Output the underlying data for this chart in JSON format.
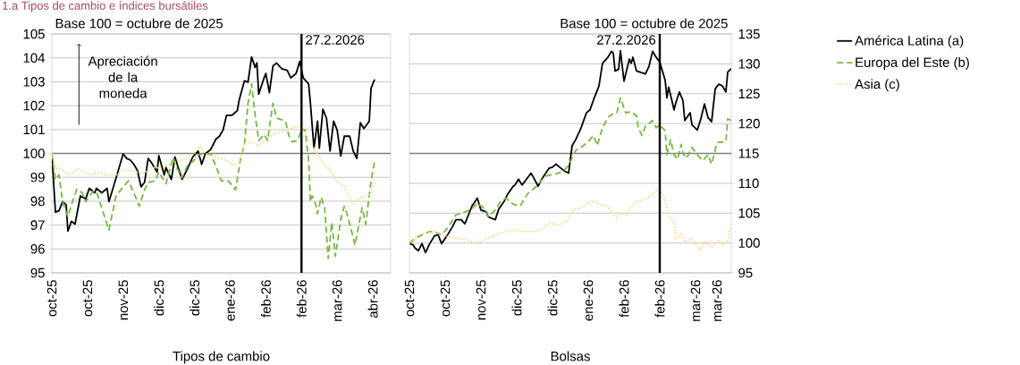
{
  "chart_data": [
    {
      "type": "line",
      "title": "1.a  Tipos de cambio e índices bursátiles",
      "subtitle": "Base 100 = octubre de 2025",
      "xlabel": "Tipos de cambio",
      "annotations": [
        "Apreciación de la moneda"
      ],
      "xlim": [
        "2025-10-10",
        "2026-04-18"
      ],
      "ylim": [
        95,
        105
      ],
      "yticks": [
        95,
        96,
        97,
        98,
        99,
        100,
        101,
        102,
        103,
        104,
        105
      ],
      "xticks": [
        {
          "value": "2025-10-10",
          "label": "oct-25"
        },
        {
          "value": "2025-10-30",
          "label": "oct-25"
        },
        {
          "value": "2025-11-19",
          "label": "nov-25"
        },
        {
          "value": "2025-12-09",
          "label": "dic-25"
        },
        {
          "value": "2025-12-29",
          "label": "dic-25"
        },
        {
          "value": "2026-01-18",
          "label": "ene-26"
        },
        {
          "value": "2026-02-07",
          "label": "feb-26"
        },
        {
          "value": "2026-02-27",
          "label": "feb-26"
        },
        {
          "value": "2026-03-19",
          "label": "mar-26"
        },
        {
          "value": "2026-04-08",
          "label": "abr-26"
        }
      ],
      "grid": "y",
      "legend": false,
      "marker": "none",
      "ref_lines": [
        {
          "axis": "y",
          "value": 100,
          "color": "#808080"
        },
        {
          "axis": "x",
          "value": "2026-02-27",
          "label": "27.2.2026",
          "color": "#000000"
        }
      ],
      "series": [
        {
          "color": "#000000",
          "line_style": "solid",
          "x": [
            "2025-10-10",
            "2025-10-12",
            "2025-10-14",
            "2025-10-16",
            "2025-10-18",
            "2025-10-19",
            "2025-10-21",
            "2025-10-23",
            "2025-10-26",
            "2025-10-29",
            "2025-10-31",
            "2025-11-03",
            "2025-11-04",
            "2025-11-07",
            "2025-11-10",
            "2025-11-11",
            "2025-11-14",
            "2025-11-17",
            "2025-11-19",
            "2025-11-21",
            "2025-11-23",
            "2025-11-25",
            "2025-11-27",
            "2025-11-29",
            "2025-12-01",
            "2025-12-03",
            "2025-12-05",
            "2025-12-08",
            "2025-12-09",
            "2025-12-12",
            "2025-12-13",
            "2025-12-16",
            "2025-12-18",
            "2025-12-22",
            "2025-12-25",
            "2025-12-28",
            "2025-12-31",
            "2026-01-02",
            "2026-01-04",
            "2026-01-07",
            "2026-01-10",
            "2026-01-12",
            "2026-01-14",
            "2026-01-16",
            "2026-01-19",
            "2026-01-22",
            "2026-01-23",
            "2026-01-26",
            "2026-01-28",
            "2026-01-30",
            "2026-02-01",
            "2026-02-02",
            "2026-02-03",
            "2026-02-06",
            "2026-02-07",
            "2026-02-09",
            "2026-02-11",
            "2026-02-13",
            "2026-02-16",
            "2026-02-19",
            "2026-02-21",
            "2026-02-24",
            "2026-02-26",
            "2026-02-28",
            "2026-03-03",
            "2026-03-04",
            "2026-03-06",
            "2026-03-08",
            "2026-03-09",
            "2026-03-11",
            "2026-03-13",
            "2026-03-15",
            "2026-03-17",
            "2026-03-19",
            "2026-03-21",
            "2026-03-23",
            "2026-03-26",
            "2026-03-28",
            "2026-03-30",
            "2026-04-01",
            "2026-04-03",
            "2026-04-06",
            "2026-04-07",
            "2026-04-09"
          ],
          "values": [
            100,
            97.54,
            97.6,
            97.98,
            97.85,
            96.75,
            97.16,
            97.04,
            98.22,
            98.1,
            98.54,
            98.35,
            98.54,
            98.35,
            98.54,
            97.98,
            98.72,
            99.48,
            99.98,
            99.79,
            99.72,
            99.54,
            99.29,
            98.6,
            98.79,
            99.79,
            99.6,
            99.22,
            99.91,
            99.1,
            99.41,
            98.91,
            99.85,
            98.91,
            99.35,
            99.85,
            100.1,
            99.54,
            99.98,
            100.16,
            100.6,
            100.72,
            100.98,
            101.6,
            101.6,
            101.79,
            102.22,
            103.04,
            102.98,
            104.04,
            103.6,
            103.79,
            102.48,
            103.16,
            103.35,
            102.54,
            103.66,
            103.79,
            103.54,
            103.48,
            103.16,
            103.35,
            103.85,
            103.16,
            102.91,
            102.1,
            100.22,
            101.35,
            100.22,
            101.85,
            101.48,
            100.1,
            101.35,
            100.98,
            99.88,
            100.72,
            100.72,
            100.1,
            99.79,
            101.29,
            101.04,
            101.35,
            102.73,
            103.1
          ]
        },
        {
          "color": "#77b843",
          "line_style": "dashed",
          "x": [
            "2025-10-10",
            "2025-10-12",
            "2025-10-14",
            "2025-10-16",
            "2025-10-19",
            "2025-10-21",
            "2025-10-24",
            "2025-10-27",
            "2025-10-29",
            "2025-11-02",
            "2025-11-04",
            "2025-11-08",
            "2025-11-11",
            "2025-11-15",
            "2025-11-19",
            "2025-11-22",
            "2025-11-25",
            "2025-11-28",
            "2025-12-01",
            "2025-12-03",
            "2025-12-07",
            "2025-12-09",
            "2025-12-13",
            "2025-12-17",
            "2025-12-19",
            "2025-12-22",
            "2025-12-25",
            "2025-12-28",
            "2026-01-01",
            "2026-01-03",
            "2026-01-07",
            "2026-01-10",
            "2026-01-13",
            "2026-01-17",
            "2026-01-21",
            "2026-01-24",
            "2026-01-26",
            "2026-01-28",
            "2026-01-30",
            "2026-02-01",
            "2026-02-03",
            "2026-02-06",
            "2026-02-08",
            "2026-02-09",
            "2026-02-11",
            "2026-02-13",
            "2026-02-16",
            "2026-02-18",
            "2026-02-20",
            "2026-02-22",
            "2026-02-25",
            "2026-02-27",
            "2026-03-01",
            "2026-03-03",
            "2026-03-04",
            "2026-03-05",
            "2026-03-07",
            "2026-03-08",
            "2026-03-10",
            "2026-03-12",
            "2026-03-14",
            "2026-03-16",
            "2026-03-18",
            "2026-03-21",
            "2026-03-23",
            "2026-03-25",
            "2026-03-29",
            "2026-04-02",
            "2026-04-04",
            "2026-04-07",
            "2026-04-09"
          ],
          "values": [
            100,
            98.91,
            99.1,
            97.98,
            97.35,
            97.85,
            98.5,
            98.35,
            97.98,
            98.41,
            98.41,
            97.48,
            96.79,
            98.22,
            98.6,
            98.85,
            98.35,
            97.79,
            98.48,
            98.79,
            98.85,
            99.22,
            98.73,
            99.85,
            99.41,
            98.98,
            99.48,
            99.66,
            99.98,
            99.98,
            99.98,
            99.48,
            98.85,
            98.85,
            98.48,
            99.85,
            100.35,
            102.1,
            102.91,
            101.6,
            100.54,
            100.79,
            100.54,
            101.1,
            102.1,
            101.48,
            101.41,
            101.35,
            100.72,
            100.48,
            100.54,
            101.04,
            100.98,
            99.73,
            97.98,
            98.22,
            97.85,
            97.48,
            98.16,
            97.73,
            95.6,
            97.1,
            95.7,
            97.23,
            97.79,
            97.35,
            96.16,
            97.73,
            97.04,
            98.85,
            99.66
          ]
        },
        {
          "color": "#ffd480",
          "line_style": "dotted",
          "x": [
            "2025-10-10",
            "2025-10-12",
            "2025-10-16",
            "2025-10-20",
            "2025-10-25",
            "2025-10-28",
            "2025-11-01",
            "2025-11-05",
            "2025-11-11",
            "2025-11-15",
            "2025-11-19",
            "2025-11-23",
            "2025-11-27",
            "2025-12-01",
            "2025-12-05",
            "2025-12-09",
            "2025-12-13",
            "2025-12-17",
            "2025-12-21",
            "2025-12-25",
            "2025-12-29",
            "2026-01-01",
            "2026-01-04",
            "2026-01-08",
            "2026-01-12",
            "2026-01-16",
            "2026-01-20",
            "2026-01-23",
            "2026-01-26",
            "2026-01-30",
            "2026-02-03",
            "2026-02-07",
            "2026-02-11",
            "2026-02-15",
            "2026-02-19",
            "2026-02-23",
            "2026-02-27",
            "2026-03-03",
            "2026-03-07",
            "2026-03-11",
            "2026-03-15",
            "2026-03-19",
            "2026-03-23",
            "2026-03-28",
            "2026-03-31",
            "2026-04-04",
            "2026-04-07",
            "2026-04-09"
          ],
          "values": [
            100,
            99.4,
            99.3,
            99.1,
            99.35,
            99.2,
            99.1,
            99.2,
            99.1,
            99.1,
            99.3,
            99.3,
            99.2,
            99.2,
            99.4,
            99.4,
            99.5,
            99.6,
            99.7,
            99.8,
            100,
            100.3,
            100,
            99.9,
            99.8,
            99.7,
            99.5,
            99.6,
            100.4,
            100.5,
            100.3,
            100.6,
            100.8,
            100.9,
            101,
            101.1,
            101.1,
            100.6,
            100.1,
            99.6,
            99.3,
            98.85,
            98.6,
            97.9,
            98.1,
            98.2,
            98.3,
            98.95
          ]
        }
      ]
    },
    {
      "type": "line",
      "subtitle": "Base 100 = octubre de 2025",
      "xlabel": "Bolsas",
      "xlim": [
        "2025-10-10",
        "2026-04-08"
      ],
      "ylim": [
        95,
        135
      ],
      "yticks": [
        95,
        100,
        105,
        110,
        115,
        120,
        125,
        130,
        135
      ],
      "xticks": [
        {
          "value": "2025-10-10",
          "label": "oct-25"
        },
        {
          "value": "2025-10-30",
          "label": "oct-25"
        },
        {
          "value": "2025-11-19",
          "label": "nov-25"
        },
        {
          "value": "2025-12-09",
          "label": "dic-25"
        },
        {
          "value": "2025-12-29",
          "label": "dic-25"
        },
        {
          "value": "2026-01-18",
          "label": "ene-26"
        },
        {
          "value": "2026-02-07",
          "label": "feb-26"
        },
        {
          "value": "2026-02-27",
          "label": "feb-26"
        },
        {
          "value": "2026-03-19",
          "label": "mar-26"
        },
        {
          "value": "2026-03-31",
          "label": "mar-26"
        }
      ],
      "grid": "y",
      "legend": "right",
      "marker": "none",
      "ref_lines": [
        {
          "axis": "y",
          "value": 115,
          "color": "#808080"
        },
        {
          "axis": "x",
          "value": "2026-02-27",
          "label": "27.2.2026",
          "color": "#000000"
        }
      ],
      "series": [
        {
          "name": "América Latina (a)",
          "color": "#000000",
          "line_style": "solid",
          "x": [
            "2025-10-10",
            "2025-10-12",
            "2025-10-13",
            "2025-10-15",
            "2025-10-17",
            "2025-10-19",
            "2025-10-21",
            "2025-10-24",
            "2025-10-26",
            "2025-10-28",
            "2025-10-31",
            "2025-11-03",
            "2025-11-05",
            "2025-11-08",
            "2025-11-10",
            "2025-11-12",
            "2025-11-14",
            "2025-11-17",
            "2025-11-19",
            "2025-11-22",
            "2025-11-23",
            "2025-11-27",
            "2025-11-29",
            "2025-12-02",
            "2025-12-04",
            "2025-12-07",
            "2025-12-08",
            "2025-12-10",
            "2025-12-12",
            "2025-12-14",
            "2025-12-17",
            "2025-12-18",
            "2025-12-21",
            "2025-12-23",
            "2025-12-27",
            "2025-12-29",
            "2025-12-31",
            "2026-01-02",
            "2026-01-05",
            "2026-01-07",
            "2026-01-09",
            "2026-01-11",
            "2026-01-14",
            "2026-01-17",
            "2026-01-19",
            "2026-01-21",
            "2026-01-24",
            "2026-01-26",
            "2026-01-29",
            "2026-01-31",
            "2026-02-01",
            "2026-02-02",
            "2026-02-04",
            "2026-02-05",
            "2026-02-07",
            "2026-02-10",
            "2026-02-11",
            "2026-02-12",
            "2026-02-14",
            "2026-02-16",
            "2026-02-19",
            "2026-02-21",
            "2026-02-23",
            "2026-02-25",
            "2026-02-27",
            "2026-03-02",
            "2026-03-03",
            "2026-03-04",
            "2026-03-07",
            "2026-03-08",
            "2026-03-10",
            "2026-03-12",
            "2026-03-13",
            "2026-03-16",
            "2026-03-17",
            "2026-03-20",
            "2026-03-22",
            "2026-03-24",
            "2026-03-26",
            "2026-03-28",
            "2026-03-30",
            "2026-04-01",
            "2026-04-03",
            "2026-04-05",
            "2026-04-06",
            "2026-04-08"
          ],
          "values": [
            99.9,
            99.7,
            99.2,
            98.7,
            99.9,
            98.4,
            99.7,
            101.2,
            101.4,
            99.9,
            101.2,
            102.7,
            103.9,
            103.9,
            103.2,
            104.7,
            106.2,
            107.5,
            105.5,
            105.2,
            104.4,
            103.9,
            105.7,
            107,
            108.2,
            109.5,
            109.7,
            110.7,
            109.7,
            110.5,
            111.7,
            111.2,
            109.5,
            110.7,
            112.5,
            112.7,
            113.2,
            112.7,
            112,
            111.7,
            116.3,
            117.3,
            119.3,
            121.8,
            122.3,
            124,
            126.3,
            130.1,
            131.1,
            132.1,
            131.8,
            128.8,
            129.1,
            132.2,
            127.1,
            130.8,
            130.1,
            131.1,
            128.8,
            128.6,
            128.3,
            129.6,
            132.1,
            131.1,
            130.3,
            127.3,
            124.3,
            126.1,
            122.3,
            123.5,
            125.3,
            123.8,
            120.5,
            121.8,
            119.8,
            118.9,
            120.8,
            123.3,
            121,
            120.3,
            125.8,
            126.6,
            126.3,
            125.3,
            128.6,
            129.2
          ]
        },
        {
          "name": "Europa del Este (b)",
          "color": "#77b843",
          "line_style": "dashed",
          "x": [
            "2025-10-10",
            "2025-10-13",
            "2025-10-16",
            "2025-10-21",
            "2025-10-24",
            "2025-10-28",
            "2025-10-31",
            "2025-11-05",
            "2025-11-10",
            "2025-11-14",
            "2025-11-17",
            "2025-11-21",
            "2025-11-23",
            "2025-11-27",
            "2025-11-30",
            "2025-12-03",
            "2025-12-07",
            "2025-12-11",
            "2025-12-15",
            "2025-12-20",
            "2025-12-25",
            "2025-12-30",
            "2026-01-04",
            "2026-01-07",
            "2026-01-11",
            "2026-01-14",
            "2026-01-18",
            "2026-01-21",
            "2026-01-23",
            "2026-01-26",
            "2026-01-29",
            "2026-01-31",
            "2026-02-03",
            "2026-02-05",
            "2026-02-08",
            "2026-02-11",
            "2026-02-14",
            "2026-02-15",
            "2026-02-17",
            "2026-02-19",
            "2026-02-21",
            "2026-02-23",
            "2026-02-25",
            "2026-02-27",
            "2026-03-02",
            "2026-03-03",
            "2026-03-05",
            "2026-03-07",
            "2026-03-09",
            "2026-03-11",
            "2026-03-12",
            "2026-03-14",
            "2026-03-17",
            "2026-03-20",
            "2026-03-23",
            "2026-03-26",
            "2026-03-28",
            "2026-03-31",
            "2026-04-05",
            "2026-04-06",
            "2026-04-08"
          ],
          "values": [
            99.9,
            100.7,
            101.2,
            101.9,
            101.9,
            101.4,
            102.4,
            104.7,
            105.2,
            105.7,
            106.7,
            105.7,
            104.4,
            105.5,
            107,
            107.5,
            106.5,
            106.2,
            108.2,
            109.5,
            111.2,
            111.5,
            112,
            113,
            115.5,
            116,
            117,
            118,
            116.3,
            119.3,
            121,
            121.5,
            121.8,
            124.3,
            121.8,
            122,
            121.3,
            119.3,
            118,
            119.5,
            120,
            120.5,
            119.3,
            119.8,
            118.8,
            114.8,
            117.3,
            114.8,
            114,
            116.5,
            115,
            114.2,
            116,
            114.8,
            113.8,
            114.8,
            113.2,
            116.8,
            117,
            120.8,
            120.5
          ]
        },
        {
          "name": "Asia (c)",
          "color": "#ffd480",
          "line_style": "dotted",
          "x": [
            "2025-10-10",
            "2025-10-14",
            "2025-10-19",
            "2025-10-24",
            "2025-10-29",
            "2025-11-03",
            "2025-11-10",
            "2025-11-16",
            "2025-11-22",
            "2025-11-28",
            "2025-12-03",
            "2025-12-08",
            "2025-12-13",
            "2025-12-18",
            "2025-12-23",
            "2025-12-27",
            "2026-01-01",
            "2026-01-06",
            "2026-01-10",
            "2026-01-13",
            "2026-01-17",
            "2026-01-21",
            "2026-01-24",
            "2026-01-29",
            "2026-01-31",
            "2026-02-03",
            "2026-02-05",
            "2026-02-09",
            "2026-02-11",
            "2026-02-15",
            "2026-02-18",
            "2026-02-21",
            "2026-02-24",
            "2026-02-27",
            "2026-03-02",
            "2026-03-04",
            "2026-03-07",
            "2026-03-08",
            "2026-03-11",
            "2026-03-13",
            "2026-03-17",
            "2026-03-22",
            "2026-03-24",
            "2026-03-28",
            "2026-04-01",
            "2026-04-04",
            "2026-04-06",
            "2026-04-07",
            "2026-04-08"
          ],
          "values": [
            100.2,
            101.2,
            101.7,
            101.9,
            101.2,
            100.9,
            100.7,
            99.9,
            100.7,
            101.4,
            101.9,
            102.2,
            101.9,
            101.9,
            102.2,
            103.4,
            102.9,
            103.7,
            105.7,
            105.7,
            106.5,
            107,
            106.5,
            106.2,
            105,
            104.2,
            105,
            104.7,
            106.2,
            107,
            107.2,
            107.7,
            108.5,
            109.2,
            107.2,
            104.7,
            103.7,
            100.7,
            101.7,
            100.2,
            100.7,
            98.7,
            100.2,
            99.2,
            100.4,
            99.7,
            100.2,
            102.2,
            102.4
          ]
        }
      ]
    }
  ]
}
